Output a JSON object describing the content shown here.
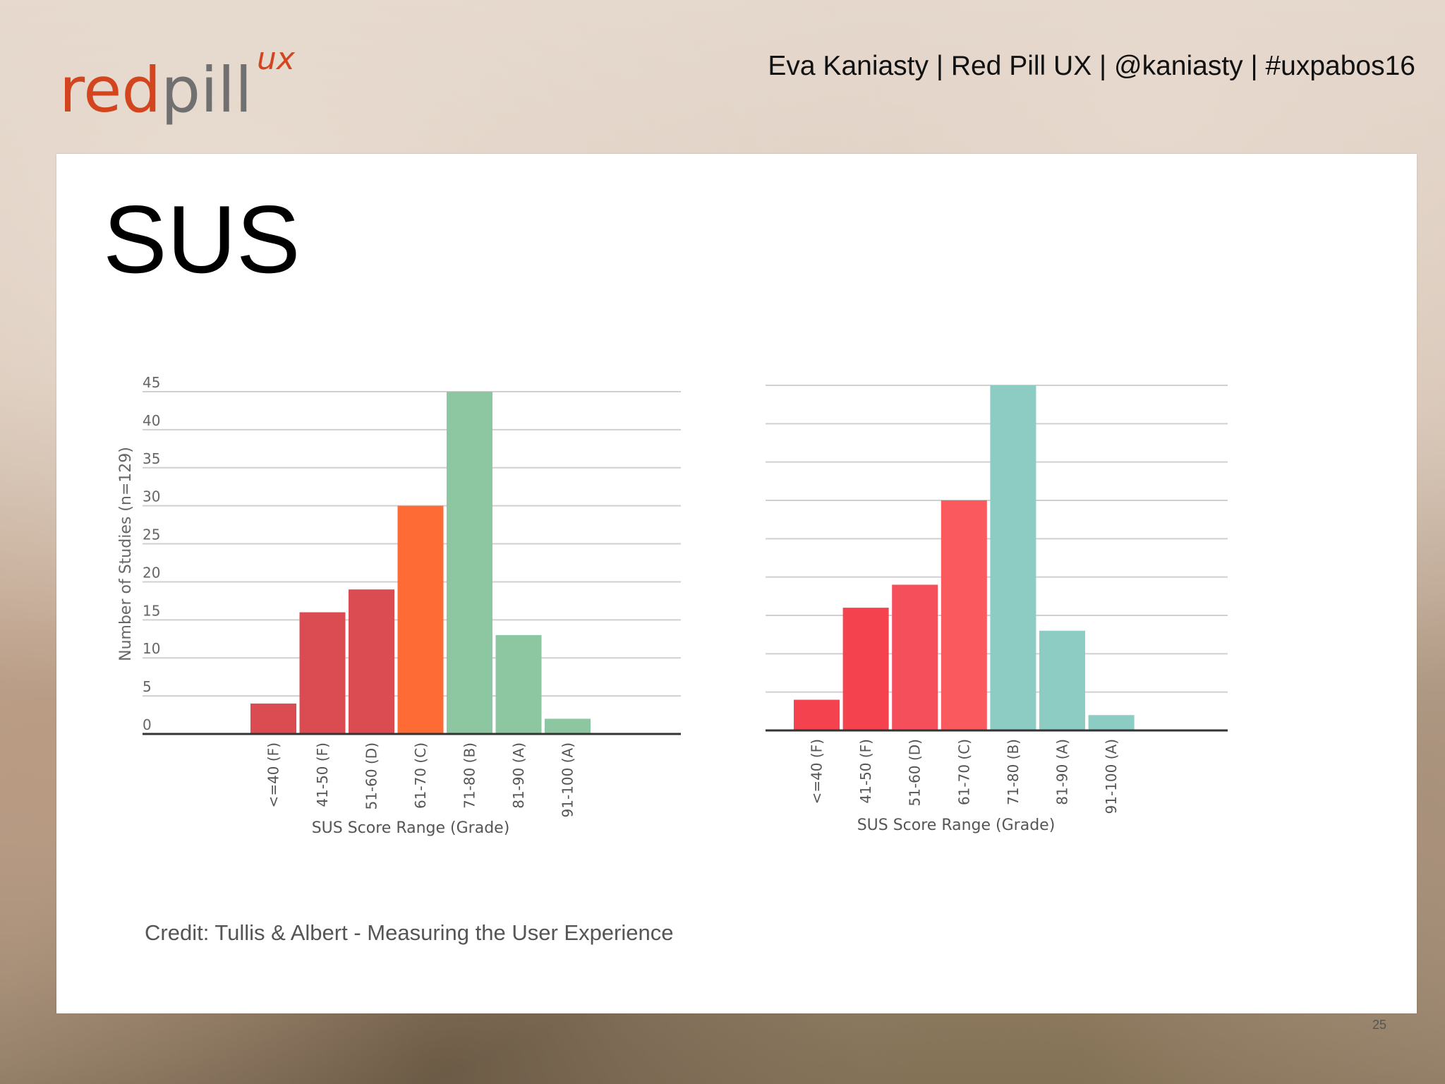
{
  "header": {
    "logo_text_red": "red",
    "logo_text_gray": "pill",
    "logo_superscript": "ux",
    "presenter_line": "Eva Kaniasty | Red Pill UX | @kaniasty | #uxpabos16"
  },
  "slide": {
    "title": "SUS",
    "credit": "Credit: Tullis & Albert - Measuring the User Experience",
    "page_number": "25"
  },
  "chart_data": [
    {
      "type": "bar",
      "categories": [
        "<=40 (F)",
        "41-50 (F)",
        "51-60 (D)",
        "61-70 (C)",
        "71-80 (B)",
        "81-90 (A)",
        "91-100 (A)"
      ],
      "values": [
        4,
        16,
        19,
        30,
        45,
        13,
        2
      ],
      "colors": [
        "#db4b52",
        "#db4b52",
        "#db4b52",
        "#ff6b35",
        "#8cc7a2",
        "#8cc7a2",
        "#8cc7a2"
      ],
      "title": "",
      "xlabel": "SUS Score Range (Grade)",
      "ylabel": "Number of Studies (n=129)",
      "ylim": [
        0,
        45
      ],
      "yticks": [
        0,
        5,
        10,
        15,
        20,
        25,
        30,
        35,
        40,
        45
      ],
      "grid": true
    },
    {
      "type": "bar",
      "categories": [
        "<=40 (F)",
        "41-50 (F)",
        "51-60 (D)",
        "61-70 (C)",
        "71-80 (B)",
        "81-90 (A)",
        "91-100 (A)"
      ],
      "values": [
        4,
        16,
        19,
        30,
        45,
        13,
        2
      ],
      "colors": [
        "#f5424f",
        "#f5424f",
        "#f54f5c",
        "#fa5a5e",
        "#8cccc2",
        "#8cccc2",
        "#8cccc2"
      ],
      "title": "",
      "xlabel": "SUS Score Range (Grade)",
      "ylabel": "",
      "ylim": [
        0,
        45
      ],
      "yticks": [],
      "grid": true
    }
  ]
}
